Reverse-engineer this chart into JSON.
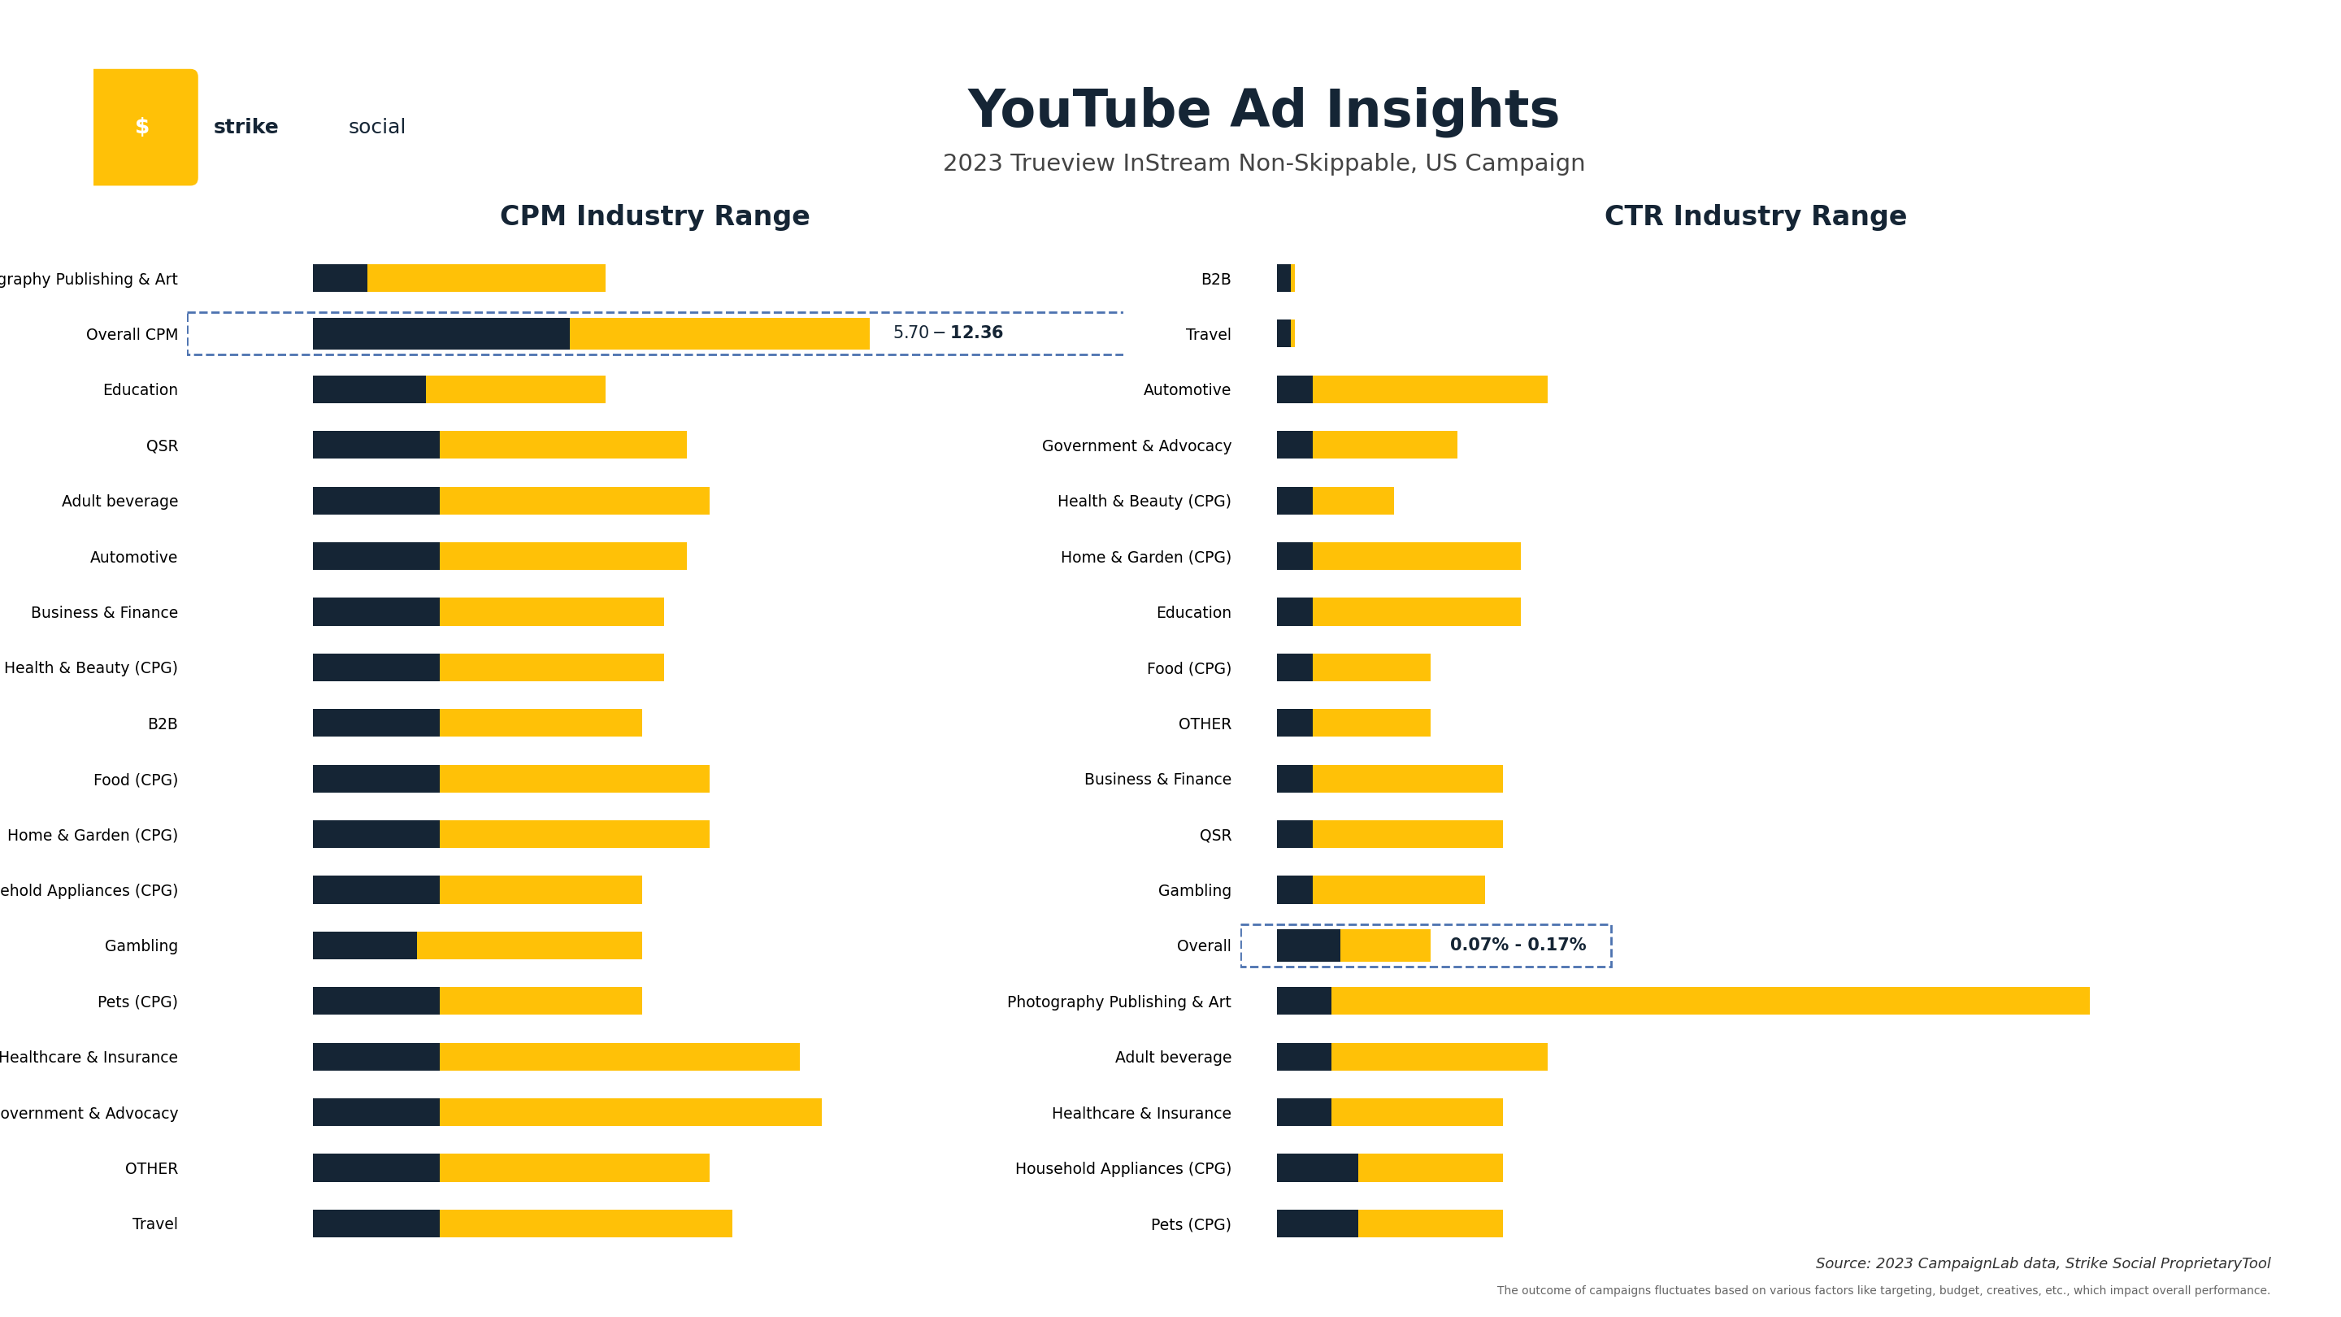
{
  "title": "YouTube Ad Insights",
  "subtitle": "2023 Trueview InStream Non-Skippable, US Campaign",
  "cpm_title": "CPM Industry Range",
  "ctr_title": "CTR Industry Range",
  "bg": "#ffffff",
  "dark": "#152535",
  "yellow": "#FFC107",
  "source": "Source: 2023 CampaignLab data, Strike Social ProprietaryTool",
  "disclaimer": "The outcome of campaigns fluctuates based on various factors like targeting, budget, creatives, etc., which impact overall performance.",
  "cpm_cats": [
    "Photography Publishing & Art",
    "Overall CPM",
    "Education",
    "QSR",
    "Adult beverage",
    "Automotive",
    "Business & Finance",
    "Health & Beauty (CPG)",
    "B2B",
    "Food (CPG)",
    "Home & Garden (CPG)",
    "Household Appliances (CPG)",
    "Gambling",
    "Pets (CPG)",
    "Healthcare & Insurance",
    "Government & Advocacy",
    "OTHER",
    "Travel"
  ],
  "cpm_dark": [
    1.2,
    5.7,
    2.5,
    2.8,
    2.8,
    2.8,
    2.8,
    2.8,
    2.8,
    2.8,
    2.8,
    2.8,
    2.3,
    2.8,
    2.8,
    2.8,
    2.8,
    2.8
  ],
  "cpm_yellow": [
    5.3,
    6.66,
    4.0,
    5.5,
    6.0,
    5.5,
    5.0,
    5.0,
    4.5,
    6.0,
    6.0,
    4.5,
    5.0,
    4.5,
    8.0,
    8.5,
    6.0,
    6.5
  ],
  "cpm_overall_label": "$5.70 - $12.36",
  "cpm_overall_idx": 1,
  "ctr_cats": [
    "B2B",
    "Travel",
    "Automotive",
    "Government & Advocacy",
    "Health & Beauty (CPG)",
    "Home & Garden (CPG)",
    "Education",
    "Food (CPG)",
    "OTHER",
    "Business & Finance",
    "QSR",
    "Gambling",
    "Overall",
    "Photography Publishing & Art",
    "Adult beverage",
    "Healthcare & Insurance",
    "Household Appliances (CPG)",
    "Pets (CPG)"
  ],
  "ctr_dark": [
    0.015,
    0.015,
    0.04,
    0.04,
    0.04,
    0.04,
    0.04,
    0.04,
    0.04,
    0.04,
    0.04,
    0.04,
    0.07,
    0.06,
    0.06,
    0.06,
    0.09,
    0.09
  ],
  "ctr_yellow": [
    0.005,
    0.005,
    0.26,
    0.16,
    0.09,
    0.23,
    0.23,
    0.13,
    0.13,
    0.21,
    0.21,
    0.19,
    0.1,
    0.84,
    0.24,
    0.19,
    0.16,
    0.16
  ],
  "ctr_overall_label": "0.07% - 0.17%",
  "ctr_overall_idx": 12
}
